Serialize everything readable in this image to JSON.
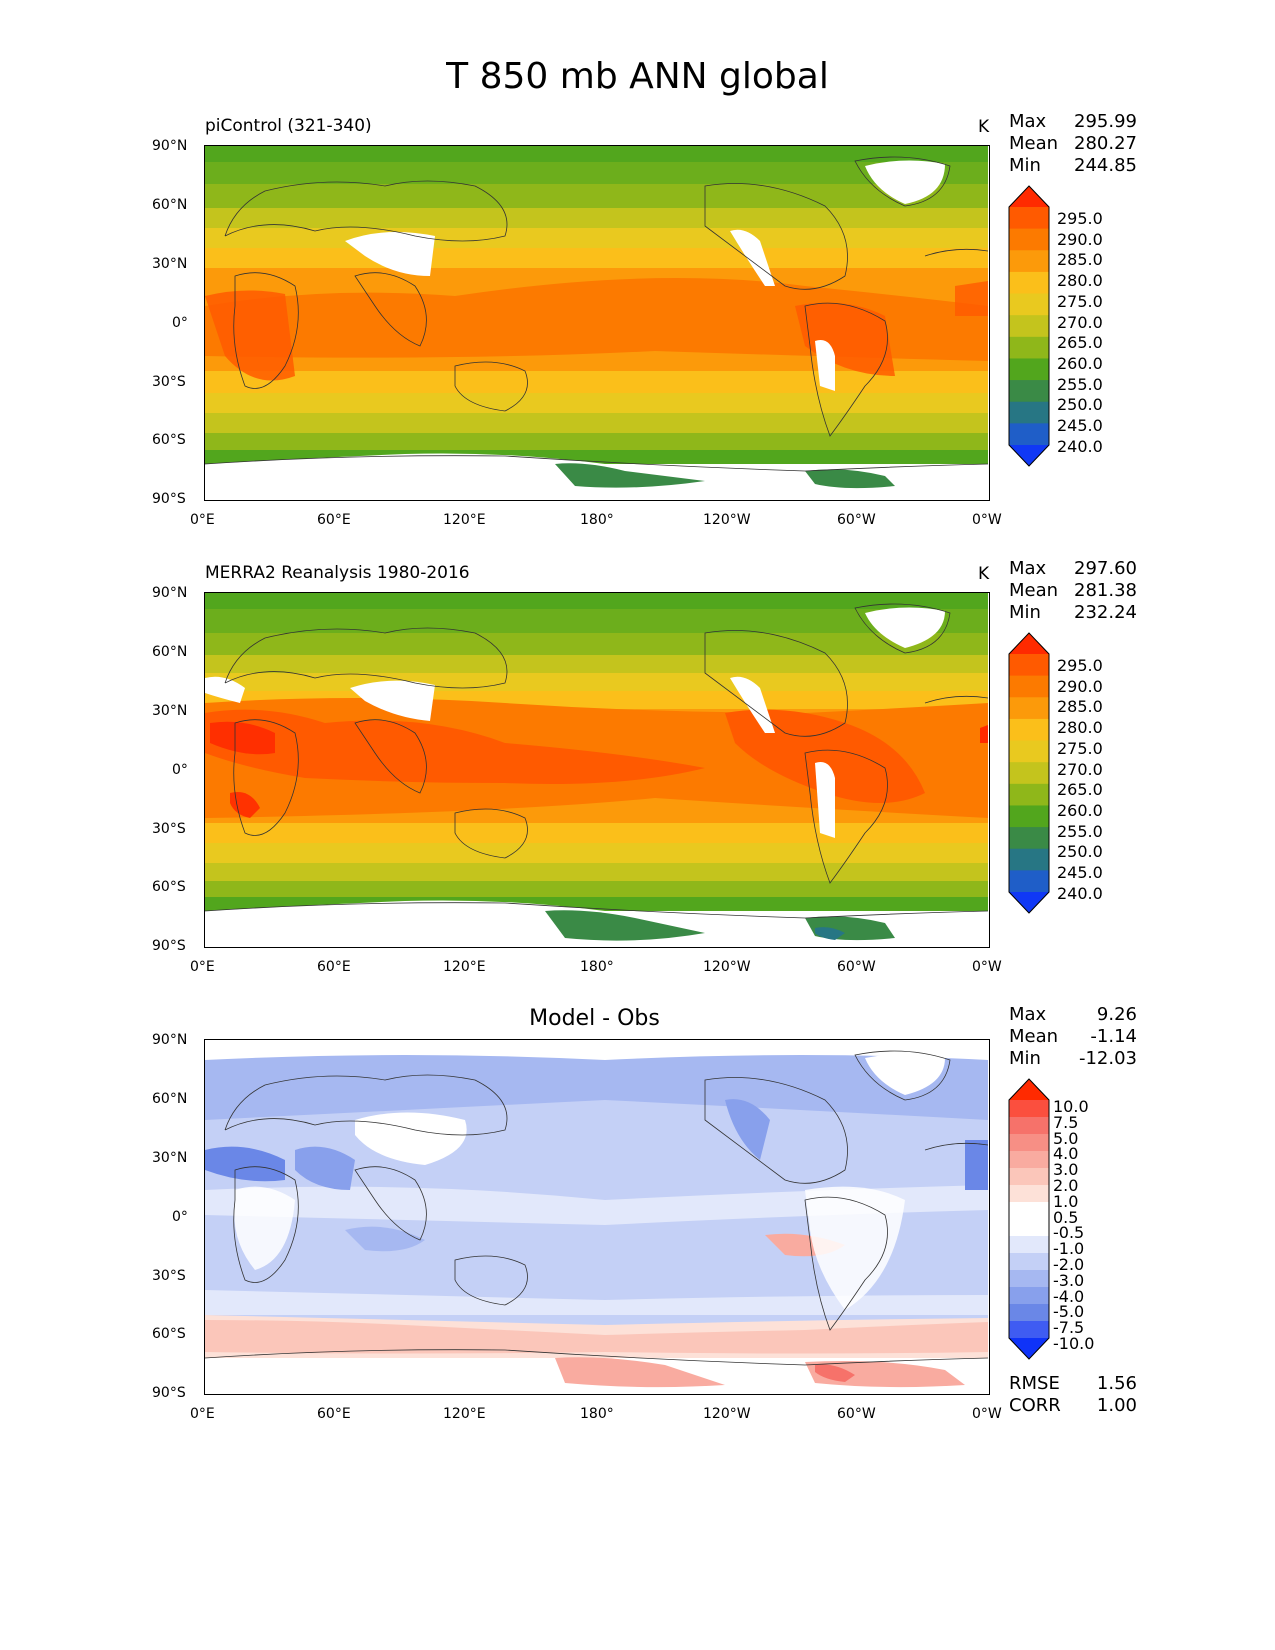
{
  "figure_title": "T 850 mb ANN global",
  "panels": [
    {
      "label": "piControl (321-340)",
      "units": "K",
      "stats": {
        "max_label": "Max",
        "max": "295.99",
        "mean_label": "Mean",
        "mean": "280.27",
        "min_label": "Min",
        "min": "244.85"
      },
      "colorbar_levels": [
        "295.0",
        "290.0",
        "285.0",
        "280.0",
        "275.0",
        "270.0",
        "265.0",
        "260.0",
        "255.0",
        "250.0",
        "245.0",
        "240.0"
      ]
    },
    {
      "label": "MERRA2 Reanalysis 1980-2016",
      "units": "K",
      "stats": {
        "max_label": "Max",
        "max": "297.60",
        "mean_label": "Mean",
        "mean": "281.38",
        "min_label": "Min",
        "min": "232.24"
      },
      "colorbar_levels": [
        "295.0",
        "290.0",
        "285.0",
        "280.0",
        "275.0",
        "270.0",
        "265.0",
        "260.0",
        "255.0",
        "250.0",
        "245.0",
        "240.0"
      ]
    },
    {
      "label": "Model - Obs",
      "units": "",
      "stats": {
        "max_label": "Max",
        "max": "9.26",
        "mean_label": "Mean",
        "mean": "-1.14",
        "min_label": "Min",
        "min": "-12.03"
      },
      "colorbar_levels": [
        "10.0",
        "7.5",
        "5.0",
        "4.0",
        "3.0",
        "2.0",
        "1.0",
        "0.5",
        "-0.5",
        "-1.0",
        "-2.0",
        "-3.0",
        "-4.0",
        "-5.0",
        "-7.5",
        "-10.0"
      ],
      "rmse_label": "RMSE",
      "rmse": "1.56",
      "corr_label": "CORR",
      "corr": "1.00"
    }
  ],
  "lat_ticks": [
    "90°N",
    "60°N",
    "30°N",
    "0°",
    "30°S",
    "60°S",
    "90°S"
  ],
  "lon_ticks": [
    "0°E",
    "60°E",
    "120°E",
    "180°",
    "120°W",
    "60°W",
    "0°W"
  ],
  "colors": {
    "abs_scale": [
      "#ff2a00",
      "#ff5a00",
      "#fc7a00",
      "#fc9a0a",
      "#fbbf1a",
      "#e9c91f",
      "#c4c41d",
      "#8fb71a",
      "#52a61d",
      "#3a8a46",
      "#277684",
      "#1f5ec8",
      "#1038f5"
    ],
    "diff_scale": [
      "#ff2a00",
      "#fb4f3e",
      "#f6726a",
      "#f78f85",
      "#f9aba0",
      "#fbc6ba",
      "#fde1d8",
      "#ffffff",
      "#ffffff",
      "#e2e8fb",
      "#c4d0f6",
      "#a6b8f1",
      "#88a0ec",
      "#6a87e7",
      "#3f5cf2",
      "#0f33f8"
    ]
  }
}
